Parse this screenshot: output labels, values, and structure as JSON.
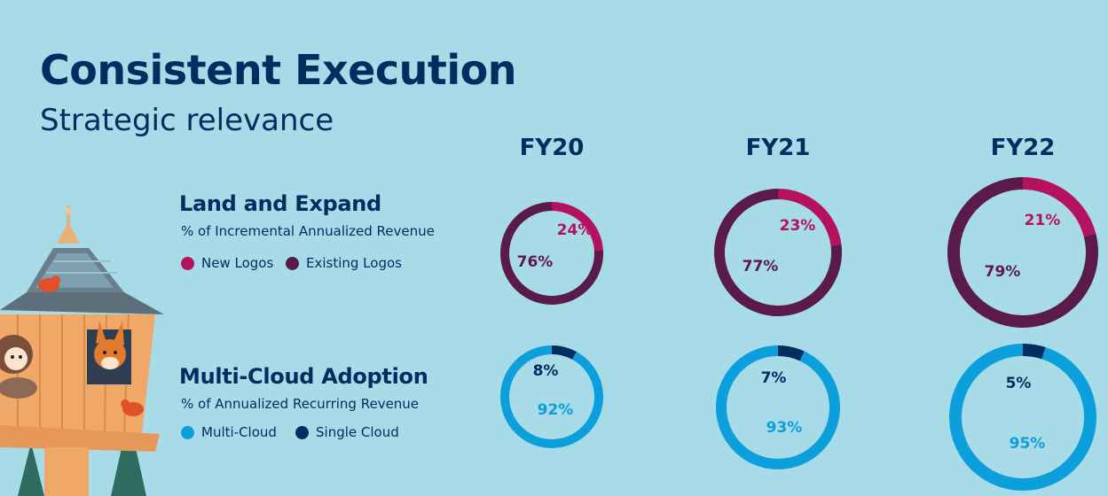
{
  "header": {
    "title": "Consistent Execution",
    "subtitle": "Strategic relevance"
  },
  "years": [
    "FY20",
    "FY21",
    "FY22"
  ],
  "sections": [
    {
      "title": "Land and Expand",
      "subtitle": "% of Incremental Annualized Revenue",
      "legend": [
        {
          "label": "New Logos",
          "color": "#b5125e"
        },
        {
          "label": "Existing Logos",
          "color": "#5a1a4a"
        }
      ]
    },
    {
      "title": "Multi-Cloud Adoption",
      "subtitle": "% of Annualized Recurring Revenue",
      "legend": [
        {
          "label": "Multi-Cloud",
          "color": "#0b9fdc"
        },
        {
          "label": "Single Cloud",
          "color": "#032d60"
        }
      ]
    }
  ],
  "chart_data": [
    {
      "type": "pie",
      "variant": "donut",
      "title": "Land and Expand",
      "categories": [
        "FY20",
        "FY21",
        "FY22"
      ],
      "series": [
        {
          "name": "New Logos",
          "values": [
            24,
            23,
            21
          ],
          "color": "#b5125e"
        },
        {
          "name": "Existing Logos",
          "values": [
            76,
            77,
            79
          ],
          "color": "#5a1a4a"
        }
      ],
      "value_labels": {
        "New Logos": [
          "24%",
          "23%",
          "21%"
        ],
        "Existing Logos": [
          "76%",
          "77%",
          "79%"
        ]
      }
    },
    {
      "type": "pie",
      "variant": "donut",
      "title": "Multi-Cloud Adoption",
      "categories": [
        "FY20",
        "FY21",
        "FY22"
      ],
      "series": [
        {
          "name": "Single Cloud",
          "values": [
            8,
            7,
            5
          ],
          "color": "#032d60"
        },
        {
          "name": "Multi-Cloud",
          "values": [
            92,
            93,
            95
          ],
          "color": "#0b9fdc"
        }
      ],
      "value_labels": {
        "Single Cloud": [
          "8%",
          "7%",
          "5%"
        ],
        "Multi-Cloud": [
          "92%",
          "93%",
          "95%"
        ]
      }
    }
  ]
}
